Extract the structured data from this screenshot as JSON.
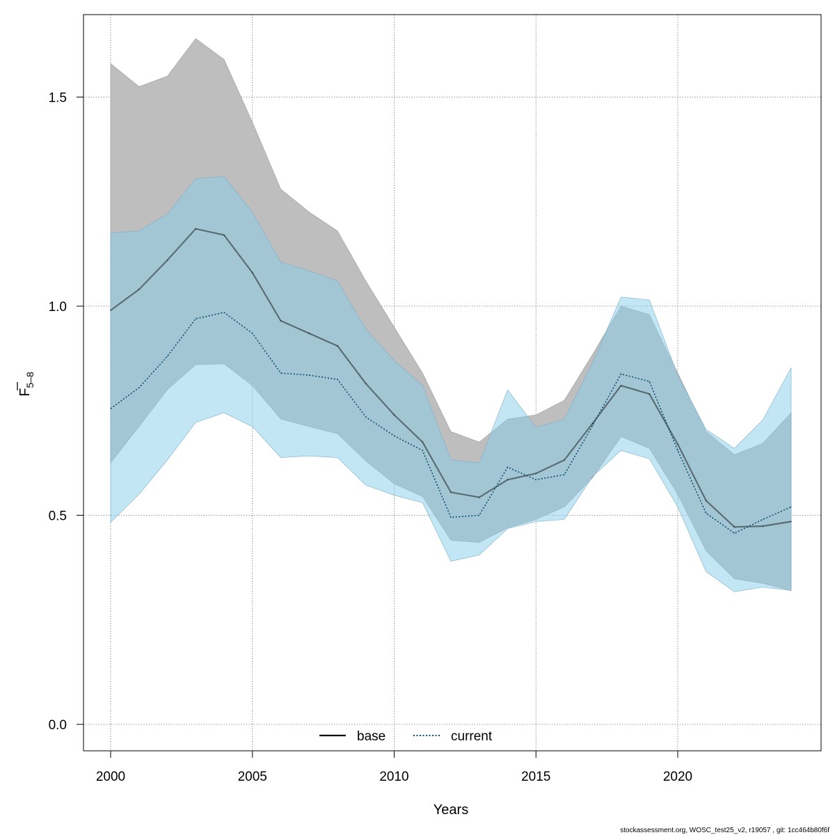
{
  "chart_data": {
    "type": "area",
    "xlabel": "Years",
    "ylabel": "F",
    "ylabel_bar": true,
    "ylabel_sub": "5–8",
    "xlim": [
      2000,
      2024
    ],
    "ylim": [
      0,
      1.6
    ],
    "xticks": [
      2000,
      2005,
      2010,
      2015,
      2020
    ],
    "yticks": [
      0.0,
      0.5,
      1.0,
      1.5
    ],
    "ytick_labels": [
      "0.0",
      "0.5",
      "1.0",
      "1.5"
    ],
    "grid": true,
    "legend_position": "bottom-center",
    "x": [
      2000,
      2001,
      2002,
      2003,
      2004,
      2005,
      2006,
      2007,
      2008,
      2009,
      2010,
      2011,
      2012,
      2013,
      2014,
      2015,
      2016,
      2017,
      2018,
      2019,
      2020,
      2021,
      2022,
      2023,
      2024
    ],
    "series": [
      {
        "name": "base",
        "line_style": "solid",
        "line_color": "#000000",
        "band_color": "#bebebe",
        "values": [
          0.99,
          1.04,
          1.11,
          1.185,
          1.17,
          1.08,
          0.965,
          0.935,
          0.905,
          0.815,
          0.74,
          0.675,
          0.555,
          0.543,
          0.585,
          0.6,
          0.632,
          0.72,
          0.81,
          0.79,
          0.67,
          0.535,
          0.472,
          0.474,
          0.485
        ],
        "lower": [
          0.625,
          0.712,
          0.8,
          0.86,
          0.862,
          0.81,
          0.73,
          0.712,
          0.695,
          0.63,
          0.575,
          0.545,
          0.44,
          0.435,
          0.47,
          0.49,
          0.52,
          0.59,
          0.688,
          0.66,
          0.55,
          0.415,
          0.348,
          0.337,
          0.32
        ],
        "upper": [
          1.58,
          1.525,
          1.55,
          1.64,
          1.59,
          1.44,
          1.28,
          1.225,
          1.18,
          1.06,
          0.95,
          0.84,
          0.7,
          0.675,
          0.73,
          0.74,
          0.775,
          0.885,
          1.0,
          0.98,
          0.84,
          0.7,
          0.645,
          0.672,
          0.745
        ]
      },
      {
        "name": "current",
        "line_style": "dotted",
        "line_color": "#0b4f6c",
        "band_color": "#87ceeb",
        "values": [
          0.755,
          0.805,
          0.88,
          0.97,
          0.985,
          0.935,
          0.84,
          0.835,
          0.825,
          0.735,
          0.69,
          0.655,
          0.495,
          0.5,
          0.615,
          0.585,
          0.597,
          0.715,
          0.838,
          0.82,
          0.655,
          0.505,
          0.457,
          0.49,
          0.52
        ],
        "lower": [
          0.483,
          0.55,
          0.632,
          0.722,
          0.745,
          0.712,
          0.638,
          0.642,
          0.638,
          0.572,
          0.548,
          0.53,
          0.39,
          0.405,
          0.468,
          0.485,
          0.49,
          0.593,
          0.655,
          0.635,
          0.52,
          0.365,
          0.317,
          0.328,
          0.32
        ],
        "upper": [
          1.175,
          1.18,
          1.22,
          1.305,
          1.31,
          1.225,
          1.105,
          1.085,
          1.06,
          0.945,
          0.87,
          0.81,
          0.633,
          0.625,
          0.8,
          0.71,
          0.73,
          0.865,
          1.022,
          1.015,
          0.835,
          0.705,
          0.66,
          0.728,
          0.853
        ]
      }
    ],
    "legend": [
      {
        "label": "base",
        "style": "solid"
      },
      {
        "label": "current",
        "style": "dotted"
      }
    ]
  },
  "footer": "stockassessment.org, WOSC_test25_v2, r19057 , git: 1cc464b80f6f"
}
